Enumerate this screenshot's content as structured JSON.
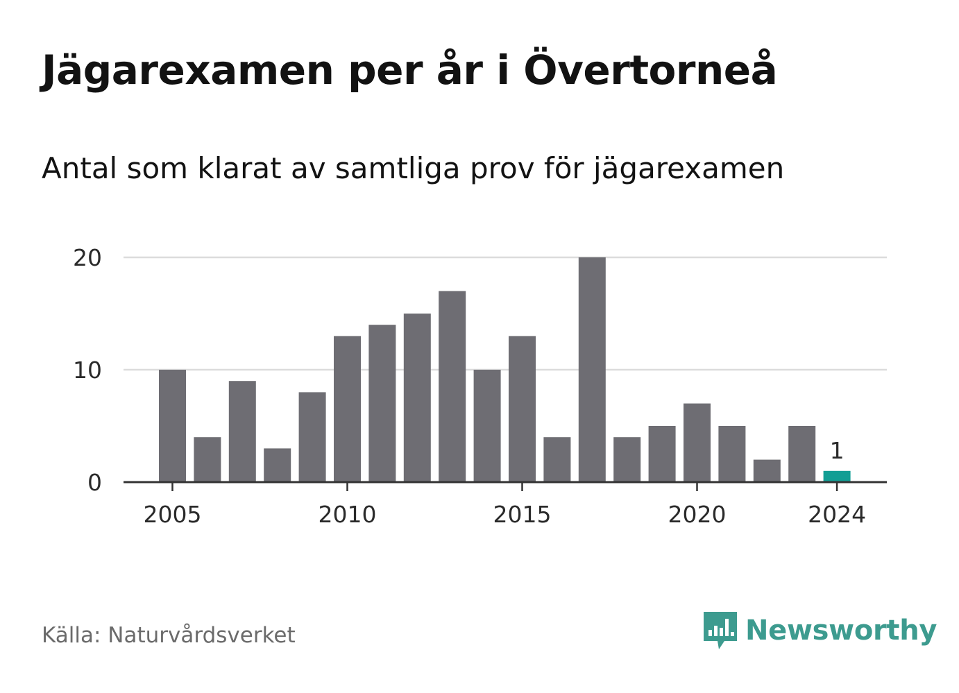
{
  "title": "Jägarexamen per år i Övertorneå",
  "subtitle": "Antal som klarat av samtliga prov för jägarexamen",
  "source": "Källa: Naturvårdsverket",
  "brand": {
    "name": "Newsworthy",
    "color": "#3d9b8f",
    "icon": "newsworthy-logo-icon"
  },
  "colors": {
    "bar": "#6e6d73",
    "highlight": "#129e94",
    "grid": "#dcdcdc",
    "axis": "#333333"
  },
  "chart_data": {
    "type": "bar",
    "title": "Jägarexamen per år i Övertorneå",
    "subtitle": "Antal som klarat av samtliga prov för jägarexamen",
    "categories": [
      2005,
      2006,
      2007,
      2008,
      2009,
      2010,
      2011,
      2012,
      2013,
      2014,
      2015,
      2016,
      2017,
      2018,
      2019,
      2020,
      2021,
      2022,
      2023,
      2024
    ],
    "values": [
      10,
      4,
      9,
      3,
      8,
      13,
      14,
      15,
      17,
      10,
      13,
      4,
      20,
      4,
      5,
      7,
      5,
      2,
      5,
      1
    ],
    "highlight": {
      "category": 2024,
      "value": 1,
      "label": "1"
    },
    "xticks": [
      2005,
      2010,
      2015,
      2020,
      2024
    ],
    "yticks": [
      0,
      10,
      20
    ],
    "ylim": [
      0,
      20
    ],
    "grid": true,
    "xlabel": "",
    "ylabel": ""
  }
}
